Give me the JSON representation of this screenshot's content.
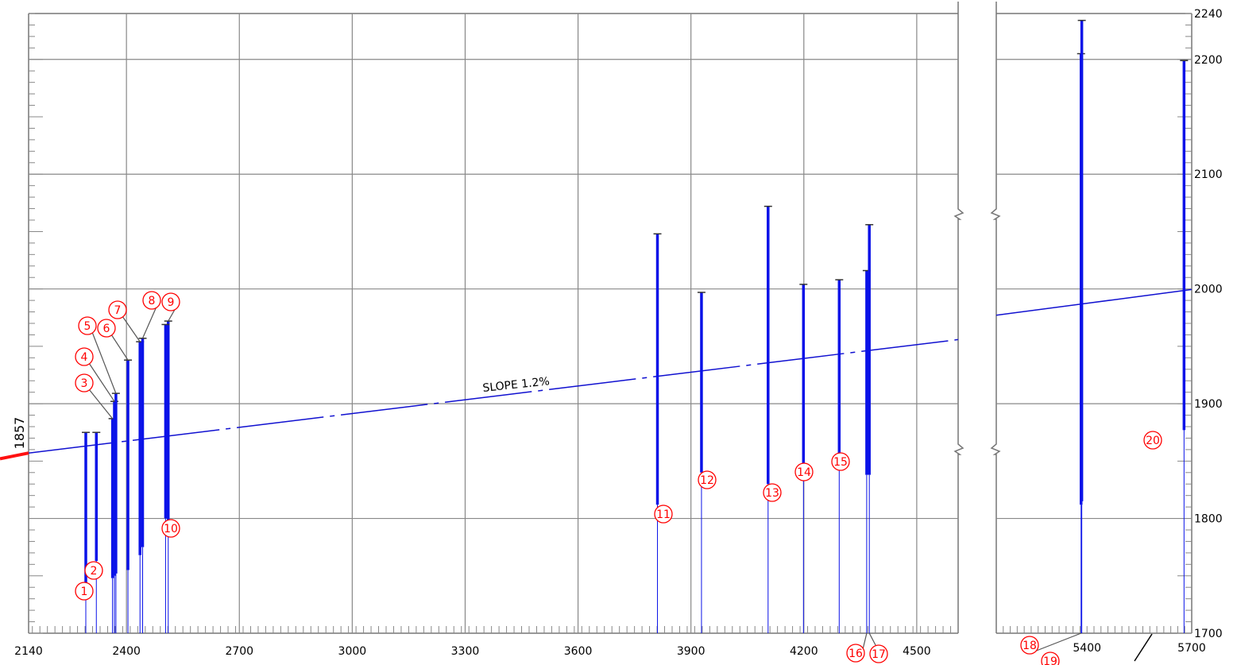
{
  "chart_data": {
    "type": "bar",
    "title": "",
    "xlabel": "",
    "ylabel": "",
    "left_label": "1857",
    "slope_label": "SLOPE 1.2%",
    "xlim": [
      2140,
      4610
    ],
    "xlim_right": [
      5140,
      5700
    ],
    "ylim": [
      1700,
      2240
    ],
    "x_ticks": [
      "2140",
      "2400",
      "2700",
      "3000",
      "3300",
      "3600",
      "3900",
      "4200",
      "4500"
    ],
    "x_ticks_right": [
      "5400",
      "5700"
    ],
    "y_ticks": [
      "2240",
      "2200",
      "2100",
      "2000",
      "1900",
      "1800",
      "1700"
    ],
    "slope_line": {
      "start": [
        2140,
        1857
      ],
      "end": [
        5700,
        1999.5
      ]
    },
    "series": [
      {
        "label": "1",
        "x": 2292,
        "top": 1875,
        "bottom": 1740
      },
      {
        "label": "2",
        "x": 2320,
        "top": 1875,
        "bottom": 1763
      },
      {
        "label": "3",
        "x": 2363,
        "top": 1887,
        "bottom": 1748
      },
      {
        "label": "4",
        "x": 2368,
        "top": 1902,
        "bottom": 1750
      },
      {
        "label": "5",
        "x": 2372,
        "top": 1909,
        "bottom": 1752
      },
      {
        "label": "6",
        "x": 2404,
        "top": 1938,
        "bottom": 1755
      },
      {
        "label": "7",
        "x": 2436,
        "top": 1954,
        "bottom": 1768
      },
      {
        "label": "8",
        "x": 2443,
        "top": 1957,
        "bottom": 1775
      },
      {
        "label": "9",
        "x": 2511,
        "top": 1972,
        "bottom": 1797
      },
      {
        "label": "10",
        "x": 2504,
        "top": 1969,
        "bottom": 1800
      },
      {
        "label": "11",
        "x": 3811,
        "top": 2048,
        "bottom": 1812
      },
      {
        "label": "12",
        "x": 3928,
        "top": 1997,
        "bottom": 1840
      },
      {
        "label": "13",
        "x": 4105,
        "top": 2072,
        "bottom": 1830
      },
      {
        "label": "14",
        "x": 4199,
        "top": 2004,
        "bottom": 1838
      },
      {
        "label": "15",
        "x": 4294,
        "top": 2008,
        "bottom": 1845
      },
      {
        "label": "16",
        "x": 4367,
        "top": 2016,
        "bottom": 1838
      },
      {
        "label": "17",
        "x": 4374,
        "top": 2056,
        "bottom": 1838
      },
      {
        "label": "18",
        "x": 5383,
        "top": 2205,
        "bottom": 1812
      },
      {
        "label": "19",
        "x": 5385,
        "top": 2234,
        "bottom": 1815
      },
      {
        "label": "20",
        "x": 5678,
        "top": 2199,
        "bottom": 1877
      }
    ]
  }
}
